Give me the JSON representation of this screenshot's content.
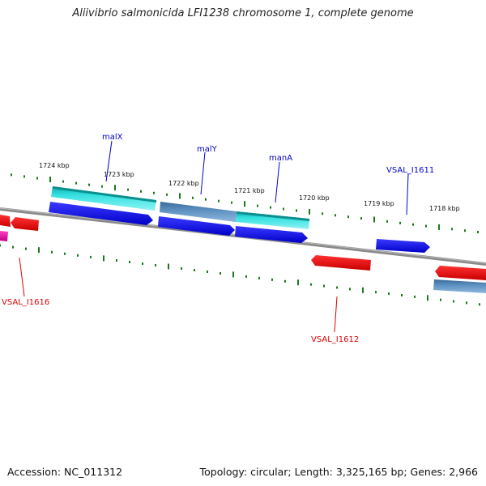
{
  "title": "Aliivibrio salmonicida LFI1238 chromosome 1, complete genome",
  "footer": {
    "accession": "Accession: NC_011312",
    "topology": "Topology: circular; Length: 3,325,165 bp; Genes: 2,966"
  },
  "ticks": [
    "1724 kbp",
    "1723 kbp",
    "1722 kbp",
    "1721 kbp",
    "1720 kbp",
    "1719 kbp",
    "1718 kbp"
  ],
  "labels": {
    "malX": "malX",
    "malY": "malY",
    "manA": "manA",
    "vsal1611": "VSAL_I1611",
    "vsal1616": "VSAL_I1616",
    "vsal1612": "VSAL_I1612"
  },
  "colors": {
    "cds": "#0000ee",
    "gene_teal": "#00cdcd",
    "gene_steel": "#4a7fb0",
    "reverse_cds": "#ee0000",
    "pseudo": "#e020a0",
    "backbone": "#888888",
    "tick": "#1a7a1a",
    "forward_label": "#0000cc",
    "reverse_label": "#dd0000"
  }
}
